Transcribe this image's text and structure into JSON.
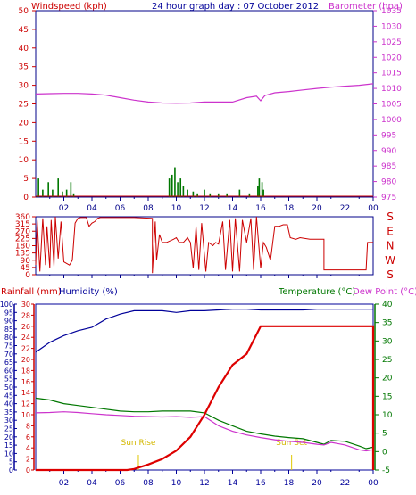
{
  "title": "24 hour graph day : 07 October 2012",
  "chart_data": [
    {
      "type": "line",
      "panel": "wind-baro",
      "left_label": "Windspeed (kph)",
      "right_label": "Barometer (hpa)",
      "x_ticks": [
        "02",
        "04",
        "06",
        "08",
        "10",
        "12",
        "14",
        "16",
        "18",
        "20",
        "22",
        "00"
      ],
      "left_ticks": [
        "50",
        "45",
        "40",
        "35",
        "30",
        "25",
        "20",
        "15",
        "10",
        "5",
        "0"
      ],
      "right_ticks": [
        "1035",
        "1030",
        "1025",
        "1020",
        "1015",
        "1010",
        "1005",
        "1000",
        "995",
        "990",
        "985",
        "980",
        "975"
      ],
      "ylim_left": [
        0,
        50
      ],
      "ylim_right": [
        975,
        1035
      ],
      "xlim": [
        0,
        24
      ],
      "barometer": [
        [
          0,
          1008.2
        ],
        [
          1,
          1008.3
        ],
        [
          2,
          1008.4
        ],
        [
          3,
          1008.4
        ],
        [
          4,
          1008.2
        ],
        [
          5,
          1007.8
        ],
        [
          6,
          1007.0
        ],
        [
          7,
          1006.2
        ],
        [
          8,
          1005.6
        ],
        [
          9,
          1005.3
        ],
        [
          10,
          1005.2
        ],
        [
          11,
          1005.3
        ],
        [
          12,
          1005.6
        ],
        [
          13,
          1005.6
        ],
        [
          14,
          1005.6
        ],
        [
          15,
          1007.0
        ],
        [
          15.7,
          1007.5
        ],
        [
          16.0,
          1006.0
        ],
        [
          16.3,
          1007.7
        ],
        [
          17,
          1008.6
        ],
        [
          18,
          1009.0
        ],
        [
          19,
          1009.5
        ],
        [
          20,
          1010.0
        ],
        [
          21,
          1010.4
        ],
        [
          22,
          1010.7
        ],
        [
          23,
          1011.0
        ],
        [
          24,
          1011.5
        ]
      ],
      "wind_bars": [
        [
          0.2,
          5
        ],
        [
          0.5,
          2
        ],
        [
          0.9,
          4
        ],
        [
          1.2,
          2
        ],
        [
          1.6,
          5
        ],
        [
          1.9,
          1.5
        ],
        [
          2.2,
          2
        ],
        [
          2.5,
          4
        ],
        [
          2.7,
          1
        ],
        [
          9.5,
          5
        ],
        [
          9.7,
          6
        ],
        [
          9.9,
          8
        ],
        [
          10.1,
          4
        ],
        [
          10.3,
          5
        ],
        [
          10.5,
          3
        ],
        [
          10.8,
          2
        ],
        [
          11.2,
          1.5
        ],
        [
          11.5,
          1
        ],
        [
          12.0,
          2
        ],
        [
          12.4,
          1
        ],
        [
          13.0,
          1
        ],
        [
          13.6,
          1
        ],
        [
          14.5,
          2
        ],
        [
          15.2,
          1
        ],
        [
          15.8,
          3
        ],
        [
          15.9,
          5
        ],
        [
          16.1,
          4
        ],
        [
          16.2,
          2
        ]
      ],
      "colors": {
        "wind": "#007700",
        "baro": "#cc33cc",
        "grid": "#cc0000",
        "left": "#cc0000",
        "right": "#cc33cc",
        "axis": "#000088"
      }
    },
    {
      "type": "line",
      "panel": "wind-direction",
      "left_ticks": [
        "360",
        "315",
        "270",
        "225",
        "180",
        "135",
        "90",
        "45",
        "0"
      ],
      "right_ticks": [
        "S",
        "E",
        "N",
        "W",
        "S"
      ],
      "ylim": [
        0,
        360
      ],
      "xlim": [
        0,
        24
      ],
      "direction": [
        [
          0,
          60
        ],
        [
          0.1,
          340
        ],
        [
          0.3,
          20
        ],
        [
          0.5,
          350
        ],
        [
          0.7,
          60
        ],
        [
          0.8,
          300
        ],
        [
          1.0,
          40
        ],
        [
          1.1,
          340
        ],
        [
          1.3,
          50
        ],
        [
          1.4,
          360
        ],
        [
          1.6,
          100
        ],
        [
          1.8,
          330
        ],
        [
          2.0,
          80
        ],
        [
          2.2,
          70
        ],
        [
          2.4,
          60
        ],
        [
          2.6,
          90
        ],
        [
          2.8,
          320
        ],
        [
          3.0,
          350
        ],
        [
          3.2,
          355
        ],
        [
          3.6,
          355
        ],
        [
          3.8,
          300
        ],
        [
          4.0,
          320
        ],
        [
          4.2,
          330
        ],
        [
          4.4,
          350
        ],
        [
          4.6,
          355
        ],
        [
          6,
          355
        ],
        [
          7,
          355
        ],
        [
          8.3,
          350
        ],
        [
          8.3,
          10
        ],
        [
          8.5,
          330
        ],
        [
          8.6,
          90
        ],
        [
          8.8,
          250
        ],
        [
          9.0,
          200
        ],
        [
          9.3,
          200
        ],
        [
          9.8,
          220
        ],
        [
          10,
          230
        ],
        [
          10.2,
          200
        ],
        [
          10.5,
          200
        ],
        [
          10.8,
          230
        ],
        [
          11.0,
          200
        ],
        [
          11.2,
          40
        ],
        [
          11.4,
          300
        ],
        [
          11.6,
          30
        ],
        [
          11.8,
          320
        ],
        [
          12.1,
          20
        ],
        [
          12.3,
          200
        ],
        [
          12.6,
          180
        ],
        [
          12.8,
          200
        ],
        [
          13.0,
          190
        ],
        [
          13.3,
          330
        ],
        [
          13.5,
          30
        ],
        [
          13.8,
          340
        ],
        [
          14.0,
          20
        ],
        [
          14.2,
          350
        ],
        [
          14.5,
          20
        ],
        [
          14.7,
          340
        ],
        [
          15.0,
          200
        ],
        [
          15.3,
          350
        ],
        [
          15.5,
          30
        ],
        [
          15.7,
          360
        ],
        [
          16.0,
          40
        ],
        [
          16.2,
          200
        ],
        [
          16.4,
          170
        ],
        [
          16.7,
          90
        ],
        [
          17.0,
          300
        ],
        [
          17.3,
          300
        ],
        [
          17.6,
          310
        ],
        [
          17.9,
          310
        ],
        [
          18.1,
          230
        ],
        [
          18.5,
          220
        ],
        [
          18.8,
          230
        ],
        [
          19.5,
          220
        ],
        [
          20.5,
          220
        ],
        [
          20.5,
          30
        ],
        [
          21.5,
          30
        ],
        [
          23.0,
          30
        ],
        [
          23.5,
          30
        ],
        [
          23.6,
          200
        ],
        [
          24,
          200
        ]
      ],
      "colors": {
        "line": "#cc0000",
        "axis": "#000088",
        "left": "#cc0000",
        "right": "#cc0000",
        "grid": "#cc0000"
      }
    },
    {
      "type": "line",
      "panel": "rain-hum-temp",
      "labels": {
        "rainfall": "Rainfall (mm)",
        "humidity": "Humidity (%)",
        "temperature": "Temperature (°C)",
        "dewpoint": "Dew Point (°C)"
      },
      "hum_ticks": [
        "100",
        "95",
        "90",
        "85",
        "80",
        "75",
        "70",
        "65",
        "60",
        "55",
        "50",
        "45",
        "40",
        "35",
        "30",
        "25",
        "20",
        "15",
        "10",
        "5",
        "0"
      ],
      "rain_ticks": [
        "30",
        "28",
        "26",
        "24",
        "22",
        "20",
        "18",
        "16",
        "14",
        "12",
        "10",
        "8",
        "6",
        "4",
        "2",
        "0"
      ],
      "temp_ticks": [
        "40",
        "35",
        "30",
        "25",
        "20",
        "15",
        "10",
        "5",
        "0",
        "-5"
      ],
      "x_ticks": [
        "02",
        "04",
        "06",
        "08",
        "10",
        "12",
        "14",
        "16",
        "18",
        "20",
        "22",
        "00"
      ],
      "xlim": [
        0,
        24
      ],
      "ylim_humidity": [
        0,
        100
      ],
      "ylim_rain": [
        0,
        30
      ],
      "ylim_temp": [
        -5,
        40
      ],
      "humidity": [
        [
          0,
          71
        ],
        [
          0.5,
          74
        ],
        [
          1,
          77
        ],
        [
          1.5,
          79
        ],
        [
          2,
          81
        ],
        [
          3,
          84
        ],
        [
          4,
          86
        ],
        [
          5,
          91
        ],
        [
          6,
          94
        ],
        [
          7,
          96
        ],
        [
          8,
          96
        ],
        [
          9,
          96
        ],
        [
          10,
          95
        ],
        [
          11,
          96
        ],
        [
          12,
          96
        ],
        [
          13,
          96.5
        ],
        [
          14,
          97
        ],
        [
          15,
          97
        ],
        [
          16,
          96.5
        ],
        [
          17,
          96.5
        ],
        [
          18,
          96.5
        ],
        [
          19,
          96.5
        ],
        [
          20,
          97
        ],
        [
          21,
          97
        ],
        [
          22,
          97
        ],
        [
          23,
          97
        ],
        [
          24,
          97
        ]
      ],
      "rain": [
        [
          0,
          0
        ],
        [
          5,
          0
        ],
        [
          6.5,
          0
        ],
        [
          7,
          0.2
        ],
        [
          8,
          1
        ],
        [
          9,
          2
        ],
        [
          10,
          3.5
        ],
        [
          11,
          6
        ],
        [
          12,
          10
        ],
        [
          13,
          15
        ],
        [
          14,
          19
        ],
        [
          15,
          21
        ],
        [
          16,
          26
        ],
        [
          17,
          26
        ],
        [
          18,
          26
        ],
        [
          19,
          26
        ],
        [
          20,
          26
        ],
        [
          21,
          26
        ],
        [
          22,
          26
        ],
        [
          23,
          26
        ],
        [
          24,
          26
        ],
        [
          24,
          0
        ]
      ],
      "temperature": [
        [
          0,
          14.5
        ],
        [
          1,
          14
        ],
        [
          2,
          13
        ],
        [
          3,
          12.5
        ],
        [
          4,
          12
        ],
        [
          5,
          11.5
        ],
        [
          6,
          11
        ],
        [
          7,
          10.8
        ],
        [
          8,
          10.8
        ],
        [
          9,
          11
        ],
        [
          10,
          11
        ],
        [
          11,
          11
        ],
        [
          12,
          10.5
        ],
        [
          13,
          8.5
        ],
        [
          14,
          7
        ],
        [
          15,
          5.5
        ],
        [
          16,
          4.8
        ],
        [
          17,
          4.2
        ],
        [
          18,
          3.8
        ],
        [
          19,
          3.5
        ],
        [
          20,
          2.5
        ],
        [
          20.5,
          2.0
        ],
        [
          21,
          3.0
        ],
        [
          22,
          2.8
        ],
        [
          23,
          1.5
        ],
        [
          23.5,
          0.8
        ],
        [
          24,
          1.2
        ]
      ],
      "dewpoint": [
        [
          0,
          10.5
        ],
        [
          1,
          10.6
        ],
        [
          2,
          10.8
        ],
        [
          3,
          10.6
        ],
        [
          4,
          10.3
        ],
        [
          5,
          10.0
        ],
        [
          6,
          9.8
        ],
        [
          7,
          9.6
        ],
        [
          8,
          9.5
        ],
        [
          9,
          9.4
        ],
        [
          10,
          9.5
        ],
        [
          11,
          9.3
        ],
        [
          12,
          9.5
        ],
        [
          13,
          7.0
        ],
        [
          14,
          5.5
        ],
        [
          15,
          4.5
        ],
        [
          16,
          3.8
        ],
        [
          17,
          3.2
        ],
        [
          18,
          2.8
        ],
        [
          19,
          2.5
        ],
        [
          20,
          2.0
        ],
        [
          20.5,
          1.8
        ],
        [
          21,
          2.5
        ],
        [
          22,
          1.8
        ],
        [
          23,
          0.5
        ],
        [
          23.5,
          0.2
        ],
        [
          24,
          0.5
        ]
      ],
      "annotations": [
        {
          "text": "Sun Rise",
          "x": 7.3
        },
        {
          "text": "Sun Set",
          "x": 18.2
        }
      ],
      "colors": {
        "humidity": "#000099",
        "rain": "#dd0000",
        "temperature": "#007700",
        "dewpoint": "#cc33cc",
        "sun": "#e0c800",
        "grid": "#cc0000",
        "hum_axis": "#000099",
        "rain_axis": "#cc0000",
        "temp_axis": "#007700"
      }
    }
  ]
}
